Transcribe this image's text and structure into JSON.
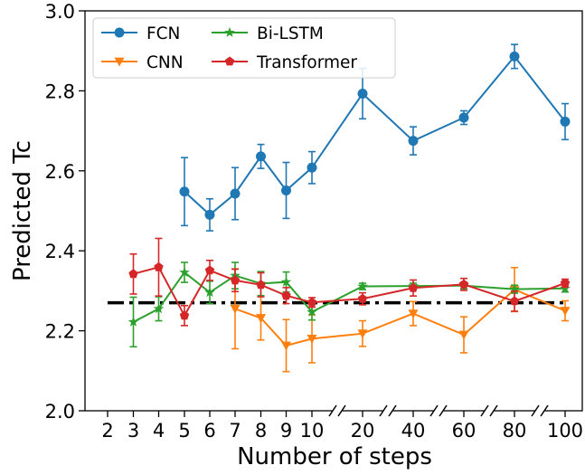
{
  "chart_data": {
    "type": "line",
    "xlabel": "Number of steps",
    "ylabel": "Predicted Tc",
    "ylim": [
      2.0,
      3.0
    ],
    "yticks": [
      "2.0",
      "2.2",
      "2.4",
      "2.6",
      "2.8",
      "3.0"
    ],
    "categories": [
      "2",
      "3",
      "4",
      "5",
      "6",
      "7",
      "8",
      "9",
      "10",
      "20",
      "40",
      "60",
      "80",
      "100"
    ],
    "axis_breaks_after": [
      "10",
      "20",
      "40",
      "60",
      "80"
    ],
    "reference_line": {
      "y": 2.27,
      "style": "dash-dot",
      "color": "#000000"
    },
    "legend_position": "top-left",
    "grid": false,
    "series": [
      {
        "name": "FCN",
        "color": "#1f77b4",
        "marker": "circle",
        "points": [
          {
            "x": "5",
            "y": 2.548,
            "err": 0.085
          },
          {
            "x": "6",
            "y": 2.49,
            "err": 0.04
          },
          {
            "x": "7",
            "y": 2.543,
            "err": 0.065
          },
          {
            "x": "8",
            "y": 2.636,
            "err": 0.03
          },
          {
            "x": "9",
            "y": 2.551,
            "err": 0.07
          },
          {
            "x": "10",
            "y": 2.608,
            "err": 0.04
          },
          {
            "x": "20",
            "y": 2.793,
            "err": 0.063
          },
          {
            "x": "40",
            "y": 2.675,
            "err": 0.035
          },
          {
            "x": "60",
            "y": 2.733,
            "err": 0.017
          },
          {
            "x": "80",
            "y": 2.886,
            "err": 0.03
          },
          {
            "x": "100",
            "y": 2.723,
            "err": 0.045
          }
        ]
      },
      {
        "name": "CNN",
        "color": "#ff7f0e",
        "marker": "triangle-down",
        "points": [
          {
            "x": "7",
            "y": 2.255,
            "err": 0.1
          },
          {
            "x": "8",
            "y": 2.232,
            "err": 0.055
          },
          {
            "x": "9",
            "y": 2.163,
            "err": 0.065
          },
          {
            "x": "10",
            "y": 2.18,
            "err": 0.06
          },
          {
            "x": "20",
            "y": 2.193,
            "err": 0.032
          },
          {
            "x": "40",
            "y": 2.243,
            "err": 0.03
          },
          {
            "x": "60",
            "y": 2.19,
            "err": 0.045
          },
          {
            "x": "80",
            "y": 2.303,
            "err": 0.055
          },
          {
            "x": "100",
            "y": 2.25,
            "err": 0.025
          }
        ]
      },
      {
        "name": "Bi-LSTM",
        "color": "#2ca02c",
        "marker": "star",
        "points": [
          {
            "x": "3",
            "y": 2.222,
            "err": 0.062
          },
          {
            "x": "4",
            "y": 2.255,
            "err": 0.03
          },
          {
            "x": "5",
            "y": 2.346,
            "err": 0.025
          },
          {
            "x": "6",
            "y": 2.296,
            "err": 0.028
          },
          {
            "x": "7",
            "y": 2.338,
            "err": 0.033
          },
          {
            "x": "8",
            "y": 2.318,
            "err": 0.03
          },
          {
            "x": "9",
            "y": 2.322,
            "err": 0.025
          },
          {
            "x": "10",
            "y": 2.247,
            "err": 0.02
          },
          {
            "x": "20",
            "y": 2.311,
            "err": 0.008
          },
          {
            "x": "40",
            "y": 2.312,
            "err": 0.007
          },
          {
            "x": "60",
            "y": 2.313,
            "err": 0.008
          },
          {
            "x": "80",
            "y": 2.304,
            "err": 0.01
          },
          {
            "x": "100",
            "y": 2.306,
            "err": 0.009
          }
        ]
      },
      {
        "name": "Transformer",
        "color": "#d62728",
        "marker": "pentagon",
        "points": [
          {
            "x": "3",
            "y": 2.342,
            "err": 0.05
          },
          {
            "x": "4",
            "y": 2.359,
            "err": 0.072
          },
          {
            "x": "5",
            "y": 2.238,
            "err": 0.025
          },
          {
            "x": "6",
            "y": 2.351,
            "err": 0.025
          },
          {
            "x": "7",
            "y": 2.326,
            "err": 0.028
          },
          {
            "x": "8",
            "y": 2.315,
            "err": 0.03
          },
          {
            "x": "9",
            "y": 2.288,
            "err": 0.02
          },
          {
            "x": "10",
            "y": 2.271,
            "err": 0.012
          },
          {
            "x": "20",
            "y": 2.28,
            "err": 0.015
          },
          {
            "x": "40",
            "y": 2.307,
            "err": 0.02
          },
          {
            "x": "60",
            "y": 2.316,
            "err": 0.015
          },
          {
            "x": "80",
            "y": 2.274,
            "err": 0.025
          },
          {
            "x": "100",
            "y": 2.319,
            "err": 0.01
          }
        ]
      }
    ]
  }
}
